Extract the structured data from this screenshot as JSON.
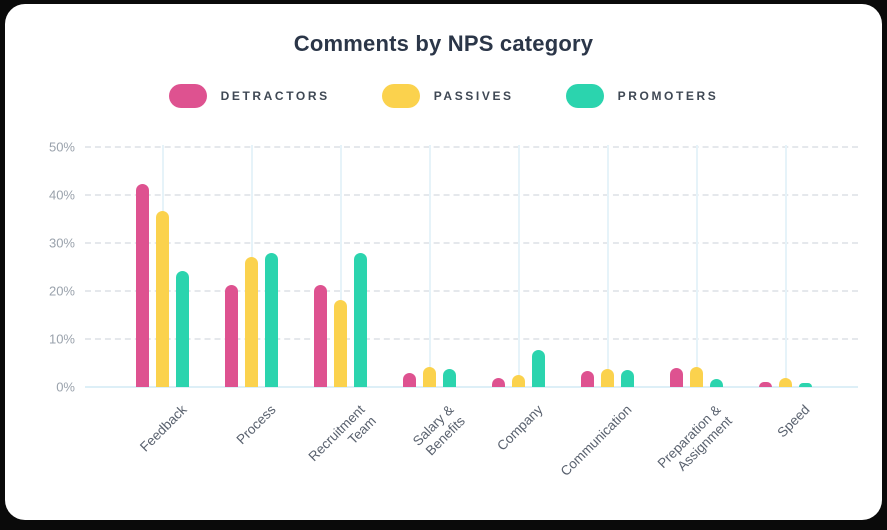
{
  "page": {
    "background": "#0A0A0A",
    "card_background": "#FFFFFF"
  },
  "title": "Comments by NPS category",
  "legend": [
    {
      "label": "DETRACTORS",
      "color": "#DE5290"
    },
    {
      "label": "PASSIVES",
      "color": "#FBD24D"
    },
    {
      "label": "PROMOTERS",
      "color": "#2BD4AE"
    }
  ],
  "chart_data": {
    "type": "bar",
    "title": "Comments by NPS category",
    "categories": [
      "Feedback",
      "Process",
      "Recruitment Team",
      "Salary & Benefits",
      "Company",
      "Communication",
      "Preparation & Assignment",
      "Speed"
    ],
    "x_tick_display": [
      "Feedback",
      "Process",
      "Recruitment\nTeam",
      "Salary &\nBenefits",
      "Company",
      "Communication",
      "Preparation &\nAssignment",
      "Speed"
    ],
    "series": [
      {
        "name": "Detractors",
        "color": "#DE5290",
        "values": [
          42.3,
          21.2,
          21.2,
          2.9,
          1.8,
          3.4,
          3.9,
          1.0
        ]
      },
      {
        "name": "Passives",
        "color": "#FBD24D",
        "values": [
          36.6,
          27.1,
          18.1,
          4.2,
          2.6,
          3.7,
          4.1,
          1.8
        ]
      },
      {
        "name": "Promoters",
        "color": "#2BD4AE",
        "values": [
          24.2,
          27.9,
          28.0,
          3.7,
          7.7,
          3.5,
          1.6,
          0.9
        ]
      }
    ],
    "xlabel": "",
    "ylabel": "",
    "y_ticks": [
      "0%",
      "10%",
      "20%",
      "30%",
      "40%",
      "50%"
    ],
    "ylim": [
      0,
      50
    ],
    "grid": "horizontal-dashed",
    "legend_position": "top",
    "colors": {
      "grid_dashed": "#E5E8EC",
      "grid_vertical": "#E6F3F9",
      "baseline": "#DDEFF7",
      "y_tick_text": "#9AA2AC",
      "x_tick_text": "#59616E",
      "title_text": "#2B3648",
      "legend_text": "#3F4854"
    }
  }
}
